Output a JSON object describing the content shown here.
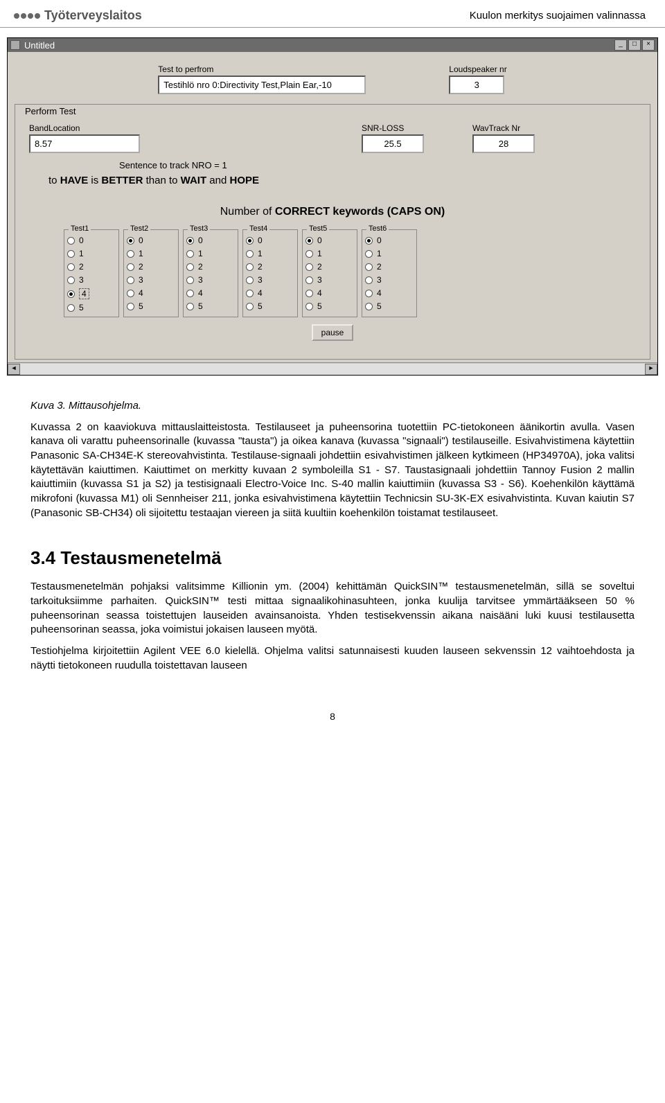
{
  "header": {
    "logo_text": "Työterveyslaitos",
    "right_text": "Kuulon merkitys suojaimen valinnassa"
  },
  "window": {
    "title": "Untitled",
    "top_fields": {
      "test_label": "Test to perfrom",
      "test_value": "Testihlö nro 0:Directivity Test,Plain Ear,-10",
      "loudspeaker_label": "Loudspeaker nr",
      "loudspeaker_value": "3"
    },
    "group_label": "Perform Test",
    "fields": {
      "band_label": "BandLocation",
      "band_value": "8.57",
      "snr_label": "SNR-LOSS",
      "snr_value": "25.5",
      "wav_label": "WavTrack Nr",
      "wav_value": "28"
    },
    "sentence_line": "Sentence to track   NRO = 1",
    "sentence_parts": {
      "p1": "to ",
      "k1": "HAVE",
      "p2": " is ",
      "k2": "BETTER",
      "p3": " than to ",
      "k3": "WAIT",
      "p4": " and ",
      "k4": "HOPE"
    },
    "instruction_prefix": "Number of ",
    "instruction_bold": "CORRECT keywords (CAPS ON)",
    "tests": [
      {
        "label": "Test1",
        "selected": 4,
        "dashed": true
      },
      {
        "label": "Test2",
        "selected": 0,
        "dashed": false
      },
      {
        "label": "Test3",
        "selected": 0,
        "dashed": false
      },
      {
        "label": "Test4",
        "selected": 0,
        "dashed": false
      },
      {
        "label": "Test5",
        "selected": 0,
        "dashed": false
      },
      {
        "label": "Test6",
        "selected": 0,
        "dashed": false
      }
    ],
    "radio_values": [
      "0",
      "1",
      "2",
      "3",
      "4",
      "5"
    ],
    "pause_label": "pause"
  },
  "body": {
    "caption": "Kuva 3. Mittausohjelma.",
    "p1": "Kuvassa 2 on kaaviokuva mittauslaitteistosta. Testilauseet ja puheensorina tuotettiin PC-tietokoneen äänikortin avulla. Vasen kanava oli varattu puheensorinalle (kuvassa \"tausta\") ja oikea kanava (kuvassa \"signaali\") testilauseille. Esivahvistimena käytettiin Panasonic SA-CH34E-K stereovahvistinta. Testilause-signaali johdettiin esivahvistimen jälkeen kytkimeen (HP34970A), joka valitsi käytettävän kaiuttimen. Kaiuttimet on merkitty kuvaan 2 symboleilla S1 - S7. Taustasignaali johdettiin Tannoy Fusion 2 mallin kaiuttimiin (kuvassa S1 ja S2) ja testisignaali Electro-Voice Inc. S-40 mallin kaiuttimiin (kuvassa S3 - S6). Koehenkilön käyttämä mikrofoni (kuvassa M1) oli Sennheiser 211, jonka esivahvistimena käytettiin Technicsin SU-3K-EX esivahvistinta. Kuvan kaiutin S7 (Panasonic SB-CH34) oli sijoitettu testaajan viereen ja siitä kuultiin koehenkilön toistamat testilauseet.",
    "h2": "3.4  Testausmenetelmä",
    "p2": "Testausmenetelmän pohjaksi valitsimme Killionin ym. (2004) kehittämän QuickSIN™ testausmenetelmän, sillä se soveltui tarkoituksiimme parhaiten. QuickSIN™ testi mittaa signaalikohinasuhteen, jonka kuulija tarvitsee ymmärtääkseen 50 % puheensorinan seassa toistettujen lauseiden avainsanoista. Yhden testisekvenssin aikana naisääni luki kuusi testilausetta puheensorinan seassa, joka voimistui jokaisen lauseen myötä.",
    "p3": "Testiohjelma kirjoitettiin Agilent VEE 6.0 kielellä. Ohjelma valitsi satunnaisesti kuuden lauseen sekvenssin 12 vaihtoehdosta ja näytti tietokoneen ruudulla toistettavan lauseen",
    "page_num": "8"
  }
}
